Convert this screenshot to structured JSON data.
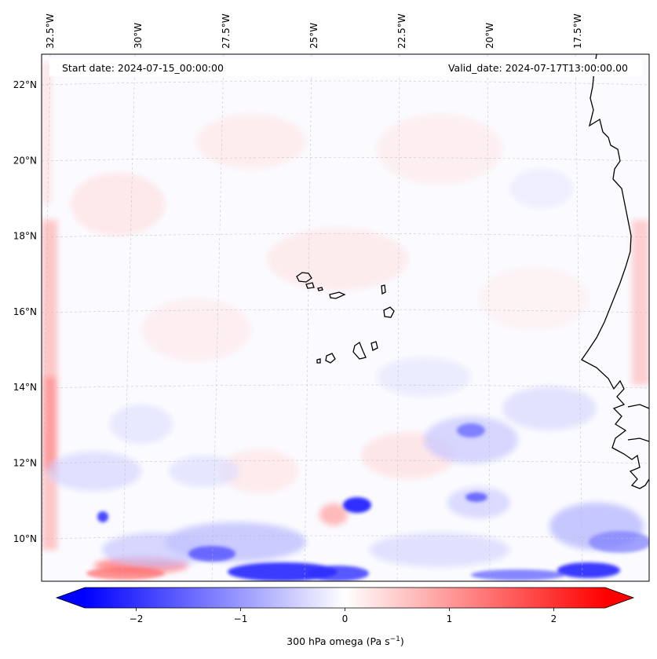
{
  "map": {
    "start_date": "Start date: 2024-07-15_00:00:00",
    "valid_date": "Valid_date: 2024-07-17T13:00:00.00",
    "longitude_labels": [
      {
        "label": "32.5°W",
        "lon": -32.5
      },
      {
        "label": "30°W",
        "lon": -30
      },
      {
        "label": "27.5°W",
        "lon": -27.5
      },
      {
        "label": "25°W",
        "lon": -25
      },
      {
        "label": "22.5°W",
        "lon": -22.5
      },
      {
        "label": "20°W",
        "lon": -20
      },
      {
        "label": "17.5°W",
        "lon": -17.5
      }
    ],
    "latitude_labels": [
      {
        "label": "22°N",
        "lat": 22
      },
      {
        "label": "20°N",
        "lat": 20
      },
      {
        "label": "18°N",
        "lat": 18
      },
      {
        "label": "16°N",
        "lat": 16
      },
      {
        "label": "14°N",
        "lat": 14
      },
      {
        "label": "12°N",
        "lat": 12
      },
      {
        "label": "10°N",
        "lat": 10
      }
    ],
    "variable": "300 hPa omega",
    "units": "Pa s",
    "units_exponent": "−1",
    "colormap": {
      "negative": "#0000ff",
      "zero": "#ffffff",
      "positive": "#ff0000"
    }
  },
  "colorbar": {
    "min": -2.75,
    "max": 2.75,
    "ticks": [
      {
        "label": "−2",
        "value": -2
      },
      {
        "label": "−1",
        "value": -1
      },
      {
        "label": "0",
        "value": 0
      },
      {
        "label": "1",
        "value": 1
      },
      {
        "label": "2",
        "value": 2
      }
    ],
    "extend": "both"
  }
}
